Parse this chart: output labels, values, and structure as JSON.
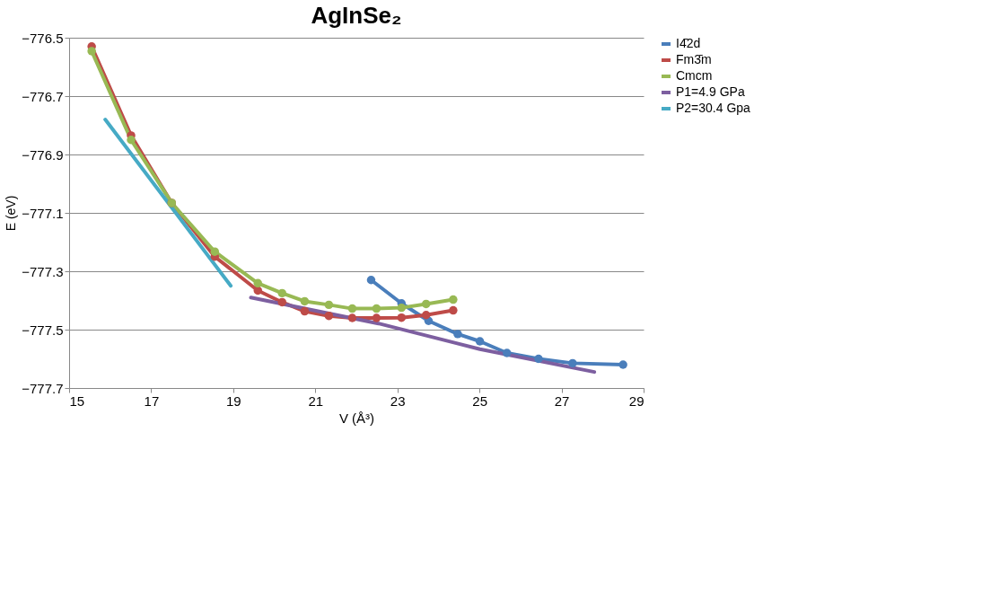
{
  "chart_data": {
    "type": "line",
    "title": "AgInSe₂",
    "xlabel": "V (Å³)",
    "ylabel": "E (eV)",
    "xlim": [
      15,
      29
    ],
    "xticks": [
      15,
      17,
      19,
      21,
      23,
      25,
      27,
      29
    ],
    "ylim": [
      -777.7,
      -776.5
    ],
    "yticks": [
      -777.7,
      -777.5,
      -777.3,
      -777.1,
      -776.9,
      -776.7,
      -776.5
    ],
    "grid": "y",
    "legend": "right",
    "line_style": "solid",
    "series": [
      {
        "name": "I4̄2d",
        "color": "#4a7ebb",
        "marker": "circle",
        "x": [
          22.36,
          23.1,
          23.76,
          24.47,
          25.01,
          25.67,
          26.44,
          27.27,
          28.5
        ],
        "values": [
          -777.33,
          -777.41,
          -777.47,
          -777.515,
          -777.54,
          -777.58,
          -777.6,
          -777.615,
          -777.62
        ]
      },
      {
        "name": "Fm3̄m",
        "color": "#be4b48",
        "marker": "circle",
        "x": [
          15.55,
          16.51,
          17.5,
          18.55,
          19.6,
          20.19,
          20.74,
          21.33,
          21.9,
          22.49,
          23.1,
          23.7,
          24.36
        ],
        "values": [
          -776.53,
          -776.835,
          -777.066,
          -777.25,
          -777.366,
          -777.406,
          -777.437,
          -777.453,
          -777.46,
          -777.46,
          -777.459,
          -777.45,
          -777.434
        ]
      },
      {
        "name": "Cmcm",
        "color": "#98b954",
        "marker": "circle",
        "x": [
          15.55,
          16.51,
          17.5,
          18.55,
          19.6,
          20.19,
          20.74,
          21.33,
          21.9,
          22.49,
          23.1,
          23.7,
          24.36
        ],
        "values": [
          -776.546,
          -776.85,
          -777.066,
          -777.233,
          -777.341,
          -777.375,
          -777.403,
          -777.415,
          -777.428,
          -777.428,
          -777.425,
          -777.412,
          -777.397
        ]
      },
      {
        "name": "P1=4.9 GPa",
        "color": "#7d5fa0",
        "marker": "none",
        "x": [
          19.43,
          22.54,
          25.01,
          27.8
        ],
        "values": [
          -777.39,
          -777.479,
          -777.567,
          -777.645
        ]
      },
      {
        "name": "P2=30.4 Gpa",
        "color": "#46aac5",
        "marker": "none",
        "x": [
          15.88,
          18.94
        ],
        "values": [
          -776.78,
          -777.35
        ]
      }
    ]
  }
}
